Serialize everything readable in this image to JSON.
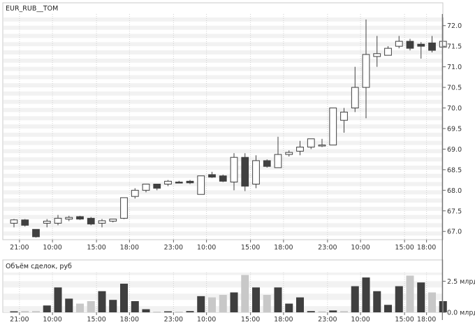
{
  "price_panel": {
    "title": "EUR_RUB__TOM"
  },
  "volume_panel": {
    "title": "Объём сделок, руб"
  },
  "colors": {
    "up_body": "#ffffff",
    "down_body": "#404040",
    "wick": "#404040",
    "grid_band": "#f2f2f2",
    "vol_dark": "#3f3f3f",
    "vol_light": "#c8c8c8",
    "axis_text": "#333333",
    "frame": "#c8c8c8"
  },
  "chart_data": [
    {
      "type": "candlestick",
      "title": "EUR_RUB__TOM",
      "ylim": [
        66.8,
        72.25
      ],
      "y_ticks": [
        "67.0",
        "67.5",
        "68.0",
        "68.5",
        "69.0",
        "69.5",
        "70.0",
        "70.5",
        "71.0",
        "71.5",
        "72.0"
      ],
      "x_ticks": [
        {
          "label": "21:00",
          "index": 0.5
        },
        {
          "label": "10:00",
          "index": 3.5
        },
        {
          "label": "15:00",
          "index": 7.5
        },
        {
          "label": "18:00",
          "index": 10.5
        },
        {
          "label": "23:00",
          "index": 14.5
        },
        {
          "label": "10:00",
          "index": 17.5
        },
        {
          "label": "15:00",
          "index": 21.5
        },
        {
          "label": "18:00",
          "index": 24.5
        },
        {
          "label": "23:00",
          "index": 28.5
        },
        {
          "label": "10:00",
          "index": 31.5
        },
        {
          "label": "15:00",
          "index": 35.5
        },
        {
          "label": "18:00",
          "index": 37.5
        }
      ],
      "candles": [
        {
          "o": 67.2,
          "h": 67.3,
          "l": 67.1,
          "c": 67.28
        },
        {
          "o": 67.28,
          "h": 67.3,
          "l": 67.12,
          "c": 67.15
        },
        {
          "o": 67.05,
          "h": 67.05,
          "l": 66.85,
          "c": 66.87
        },
        {
          "o": 67.2,
          "h": 67.3,
          "l": 67.1,
          "c": 67.25
        },
        {
          "o": 67.2,
          "h": 67.4,
          "l": 67.15,
          "c": 67.32
        },
        {
          "o": 67.3,
          "h": 67.38,
          "l": 67.25,
          "c": 67.34
        },
        {
          "o": 67.36,
          "h": 67.38,
          "l": 67.28,
          "c": 67.3
        },
        {
          "o": 67.32,
          "h": 67.35,
          "l": 67.15,
          "c": 67.18
        },
        {
          "o": 67.2,
          "h": 67.3,
          "l": 67.1,
          "c": 67.26
        },
        {
          "o": 67.25,
          "h": 67.3,
          "l": 67.22,
          "c": 67.3
        },
        {
          "o": 67.32,
          "h": 67.82,
          "l": 67.3,
          "c": 67.82
        },
        {
          "o": 67.85,
          "h": 68.05,
          "l": 67.8,
          "c": 68.0
        },
        {
          "o": 68.0,
          "h": 68.15,
          "l": 67.95,
          "c": 68.15
        },
        {
          "o": 68.15,
          "h": 68.15,
          "l": 68.0,
          "c": 68.05
        },
        {
          "o": 68.15,
          "h": 68.25,
          "l": 68.1,
          "c": 68.22
        },
        {
          "o": 68.2,
          "h": 68.23,
          "l": 68.17,
          "c": 68.19
        },
        {
          "o": 68.22,
          "h": 68.25,
          "l": 68.15,
          "c": 68.18
        },
        {
          "o": 67.9,
          "h": 68.35,
          "l": 67.9,
          "c": 68.35
        },
        {
          "o": 68.38,
          "h": 68.45,
          "l": 68.3,
          "c": 68.32
        },
        {
          "o": 68.35,
          "h": 68.38,
          "l": 68.2,
          "c": 68.22
        },
        {
          "o": 68.2,
          "h": 68.9,
          "l": 68.0,
          "c": 68.8
        },
        {
          "o": 68.8,
          "h": 68.9,
          "l": 67.98,
          "c": 68.1
        },
        {
          "o": 68.15,
          "h": 68.85,
          "l": 68.05,
          "c": 68.72
        },
        {
          "o": 68.72,
          "h": 68.75,
          "l": 68.55,
          "c": 68.58
        },
        {
          "o": 68.55,
          "h": 69.3,
          "l": 68.55,
          "c": 68.87
        },
        {
          "o": 68.87,
          "h": 68.97,
          "l": 68.82,
          "c": 68.92
        },
        {
          "o": 68.95,
          "h": 69.2,
          "l": 68.85,
          "c": 69.05
        },
        {
          "o": 69.05,
          "h": 69.25,
          "l": 69.0,
          "c": 69.25
        },
        {
          "o": 69.1,
          "h": 69.25,
          "l": 69.05,
          "c": 69.1
        },
        {
          "o": 69.1,
          "h": 70.0,
          "l": 69.1,
          "c": 70.0
        },
        {
          "o": 69.7,
          "h": 70.0,
          "l": 69.4,
          "c": 69.9
        },
        {
          "o": 70.0,
          "h": 71.0,
          "l": 69.9,
          "c": 70.5
        },
        {
          "o": 70.5,
          "h": 72.15,
          "l": 69.75,
          "c": 71.3
        },
        {
          "o": 71.25,
          "h": 71.75,
          "l": 71.0,
          "c": 71.32
        },
        {
          "o": 71.28,
          "h": 71.5,
          "l": 71.28,
          "c": 71.45
        },
        {
          "o": 71.5,
          "h": 71.75,
          "l": 71.45,
          "c": 71.62
        },
        {
          "o": 71.62,
          "h": 71.68,
          "l": 71.4,
          "c": 71.45
        },
        {
          "o": 71.55,
          "h": 71.6,
          "l": 71.2,
          "c": 71.5
        },
        {
          "o": 71.58,
          "h": 71.75,
          "l": 71.35,
          "c": 71.4
        },
        {
          "o": 71.48,
          "h": 72.2,
          "l": 71.45,
          "c": 71.62
        }
      ]
    },
    {
      "type": "bar",
      "title": "Объём сделок, руб",
      "unit": "млрд",
      "ylim": [
        0,
        3.2
      ],
      "y_ticks": [
        {
          "value": 2.5,
          "label": "2.5 млрд"
        },
        {
          "value": 0.0,
          "label": "0.0 млрд"
        }
      ],
      "bars": [
        {
          "v": 0.08,
          "shade": "dark"
        },
        {
          "v": 0.1,
          "shade": "light"
        },
        {
          "v": 0.1,
          "shade": "light"
        },
        {
          "v": 0.55,
          "shade": "dark"
        },
        {
          "v": 2.0,
          "shade": "dark"
        },
        {
          "v": 1.1,
          "shade": "dark"
        },
        {
          "v": 0.7,
          "shade": "light"
        },
        {
          "v": 0.9,
          "shade": "light"
        },
        {
          "v": 1.7,
          "shade": "dark"
        },
        {
          "v": 1.0,
          "shade": "dark"
        },
        {
          "v": 2.3,
          "shade": "dark"
        },
        {
          "v": 0.9,
          "shade": "dark"
        },
        {
          "v": 0.25,
          "shade": "dark"
        },
        {
          "v": 0.05,
          "shade": "light"
        },
        {
          "v": 0.08,
          "shade": "dark"
        },
        {
          "v": 0.05,
          "shade": "light"
        },
        {
          "v": 0.1,
          "shade": "dark"
        },
        {
          "v": 1.3,
          "shade": "dark"
        },
        {
          "v": 1.2,
          "shade": "light"
        },
        {
          "v": 1.4,
          "shade": "light"
        },
        {
          "v": 1.6,
          "shade": "dark"
        },
        {
          "v": 3.0,
          "shade": "light"
        },
        {
          "v": 2.0,
          "shade": "dark"
        },
        {
          "v": 1.4,
          "shade": "light"
        },
        {
          "v": 2.0,
          "shade": "dark"
        },
        {
          "v": 0.7,
          "shade": "dark"
        },
        {
          "v": 1.2,
          "shade": "dark"
        },
        {
          "v": 0.1,
          "shade": "dark"
        },
        {
          "v": 0.08,
          "shade": "light"
        },
        {
          "v": 0.15,
          "shade": "dark"
        },
        {
          "v": 0.1,
          "shade": "light"
        },
        {
          "v": 2.1,
          "shade": "dark"
        },
        {
          "v": 2.8,
          "shade": "dark"
        },
        {
          "v": 1.7,
          "shade": "dark"
        },
        {
          "v": 0.6,
          "shade": "dark"
        },
        {
          "v": 2.1,
          "shade": "dark"
        },
        {
          "v": 2.95,
          "shade": "light"
        },
        {
          "v": 2.4,
          "shade": "dark"
        },
        {
          "v": 1.6,
          "shade": "light"
        },
        {
          "v": 0.9,
          "shade": "dark"
        }
      ],
      "x_ticks": [
        {
          "label": "21:00",
          "index": 0.5
        },
        {
          "label": "10:00",
          "index": 3.5
        },
        {
          "label": "15:00",
          "index": 7.5
        },
        {
          "label": "18:00",
          "index": 10.5
        },
        {
          "label": "23:00",
          "index": 14.5
        },
        {
          "label": "10:00",
          "index": 17.5
        },
        {
          "label": "15:00",
          "index": 21.5
        },
        {
          "label": "18:00",
          "index": 24.5
        },
        {
          "label": "23:00",
          "index": 28.5
        },
        {
          "label": "10:00",
          "index": 31.5
        },
        {
          "label": "15:00",
          "index": 35.5
        },
        {
          "label": "18:00",
          "index": 37.5
        }
      ]
    }
  ]
}
